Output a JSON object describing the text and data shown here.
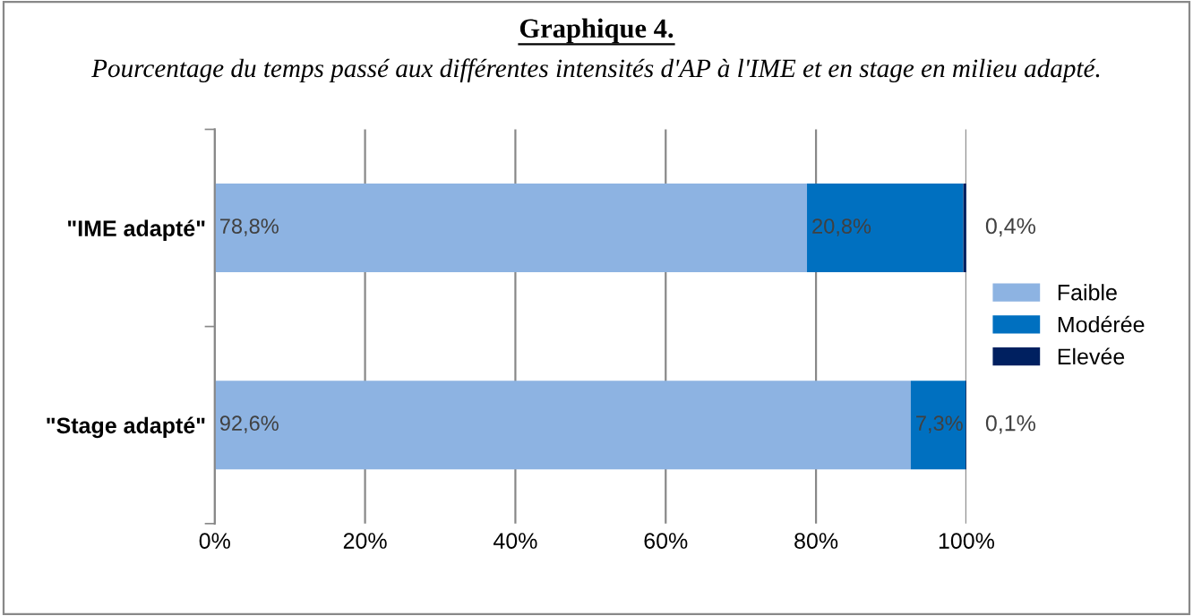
{
  "chart_data": {
    "type": "bar",
    "orientation": "horizontal",
    "stacked": true,
    "title": "Graphique 4.",
    "subtitle": "Pourcentage du temps passé aux différentes intensités d'AP à l'IME et en stage en milieu adapté.",
    "categories": [
      "\"IME adapté\"",
      "\"Stage adapté\""
    ],
    "series": [
      {
        "name": "Faible",
        "color": "#8db3e2",
        "values": [
          78.8,
          92.6
        ],
        "value_labels": [
          "78,8%",
          "92,6%"
        ]
      },
      {
        "name": "Modérée",
        "color": "#0070c0",
        "values": [
          20.8,
          7.3
        ],
        "value_labels": [
          "20,8%",
          "7,3%"
        ]
      },
      {
        "name": "Elevée",
        "color": "#002060",
        "values": [
          0.4,
          0.1
        ],
        "value_labels": [
          "0,4%",
          "0,1%"
        ]
      }
    ],
    "xlim": [
      0,
      100
    ],
    "xticks": [
      {
        "value": 0,
        "label": "0%"
      },
      {
        "value": 20,
        "label": "20%"
      },
      {
        "value": 40,
        "label": "40%"
      },
      {
        "value": 60,
        "label": "60%"
      },
      {
        "value": 80,
        "label": "80%"
      },
      {
        "value": 100,
        "label": "100%"
      }
    ],
    "grid": "x",
    "legend": "right"
  }
}
